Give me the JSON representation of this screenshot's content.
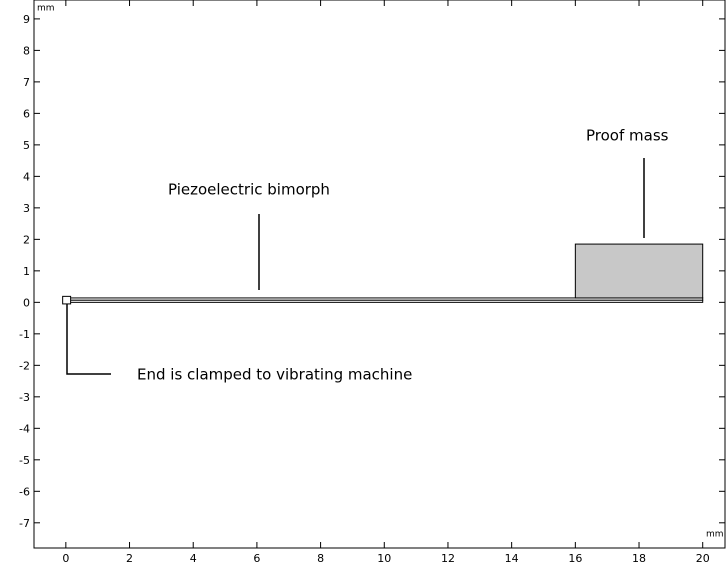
{
  "chart_data": {
    "type": "geometry",
    "xunit": "mm",
    "yunit": "mm",
    "xlim": [
      -1.0,
      20.7
    ],
    "ylim": [
      -7.8,
      9.6
    ],
    "xticks": [
      0,
      2,
      4,
      6,
      8,
      10,
      12,
      14,
      16,
      18,
      20
    ],
    "yticks": [
      -7,
      -6,
      -5,
      -4,
      -3,
      -2,
      -1,
      0,
      1,
      2,
      3,
      4,
      5,
      6,
      7,
      8,
      9
    ],
    "rectangles": [
      {
        "x": [
          0,
          20
        ],
        "y": [
          0,
          0.07
        ],
        "color": "#ffffff"
      },
      {
        "x": [
          0,
          20
        ],
        "y": [
          0.07,
          0.14
        ],
        "color": "#ffffff"
      },
      {
        "x": [
          16,
          20
        ],
        "y": [
          0.14,
          1.85
        ],
        "color": "#c8c8c8"
      },
      {
        "x": [
          -0.1,
          0.15
        ],
        "y": [
          -0.05,
          0.19
        ],
        "color": "#ffffff"
      }
    ],
    "annotations": [
      "Piezoelectric bimorph",
      "Proof mass",
      "End is clamped to vibrating machine"
    ]
  }
}
